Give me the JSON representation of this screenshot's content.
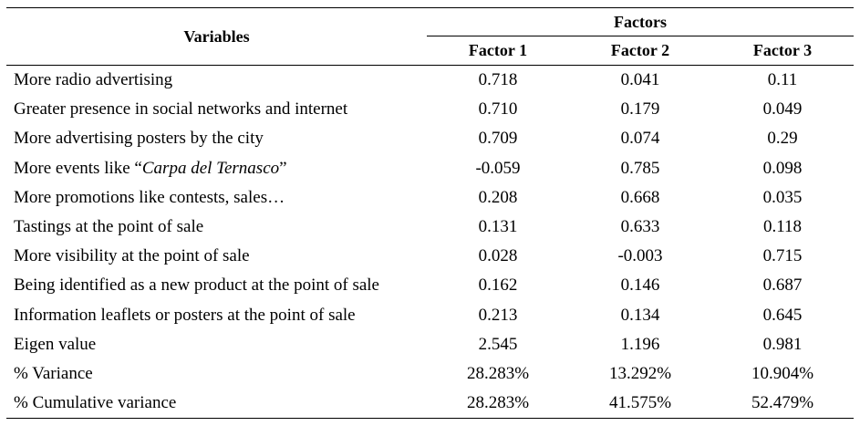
{
  "header": {
    "variables": "Variables",
    "factors": "Factors",
    "factor_columns": [
      "Factor 1",
      "Factor 2",
      "Factor 3"
    ]
  },
  "rows": [
    {
      "label": "More radio advertising",
      "values": [
        "0.718",
        "0.041",
        "0.11"
      ]
    },
    {
      "label": "Greater presence in social networks and internet",
      "values": [
        "0.710",
        "0.179",
        "0.049"
      ]
    },
    {
      "label": "More advertising posters by the city",
      "values": [
        "0.709",
        "0.074",
        "0.29"
      ]
    },
    {
      "label_prefix": "More events like “",
      "label_italic": "Carpa del Ternasco",
      "label_suffix": "”",
      "values": [
        "-0.059",
        "0.785",
        "0.098"
      ]
    },
    {
      "label": "More promotions like contests, sales…",
      "values": [
        "0.208",
        "0.668",
        "0.035"
      ]
    },
    {
      "label": "Tastings at the point of sale",
      "values": [
        "0.131",
        "0.633",
        "0.118"
      ]
    },
    {
      "label": "More visibility at the point of sale",
      "values": [
        "0.028",
        "-0.003",
        "0.715"
      ]
    },
    {
      "label": "Being identified as a new product at the point of sale",
      "values": [
        "0.162",
        "0.146",
        "0.687"
      ]
    },
    {
      "label": "Information leaflets or posters at the point of sale",
      "values": [
        "0.213",
        "0.134",
        "0.645"
      ]
    },
    {
      "label": "Eigen value",
      "values": [
        "2.545",
        "1.196",
        "0.981"
      ]
    },
    {
      "label": "% Variance",
      "values": [
        "28.283%",
        "13.292%",
        "10.904%"
      ]
    },
    {
      "label": "% Cumulative variance",
      "values": [
        "28.283%",
        "41.575%",
        "52.479%"
      ]
    }
  ]
}
